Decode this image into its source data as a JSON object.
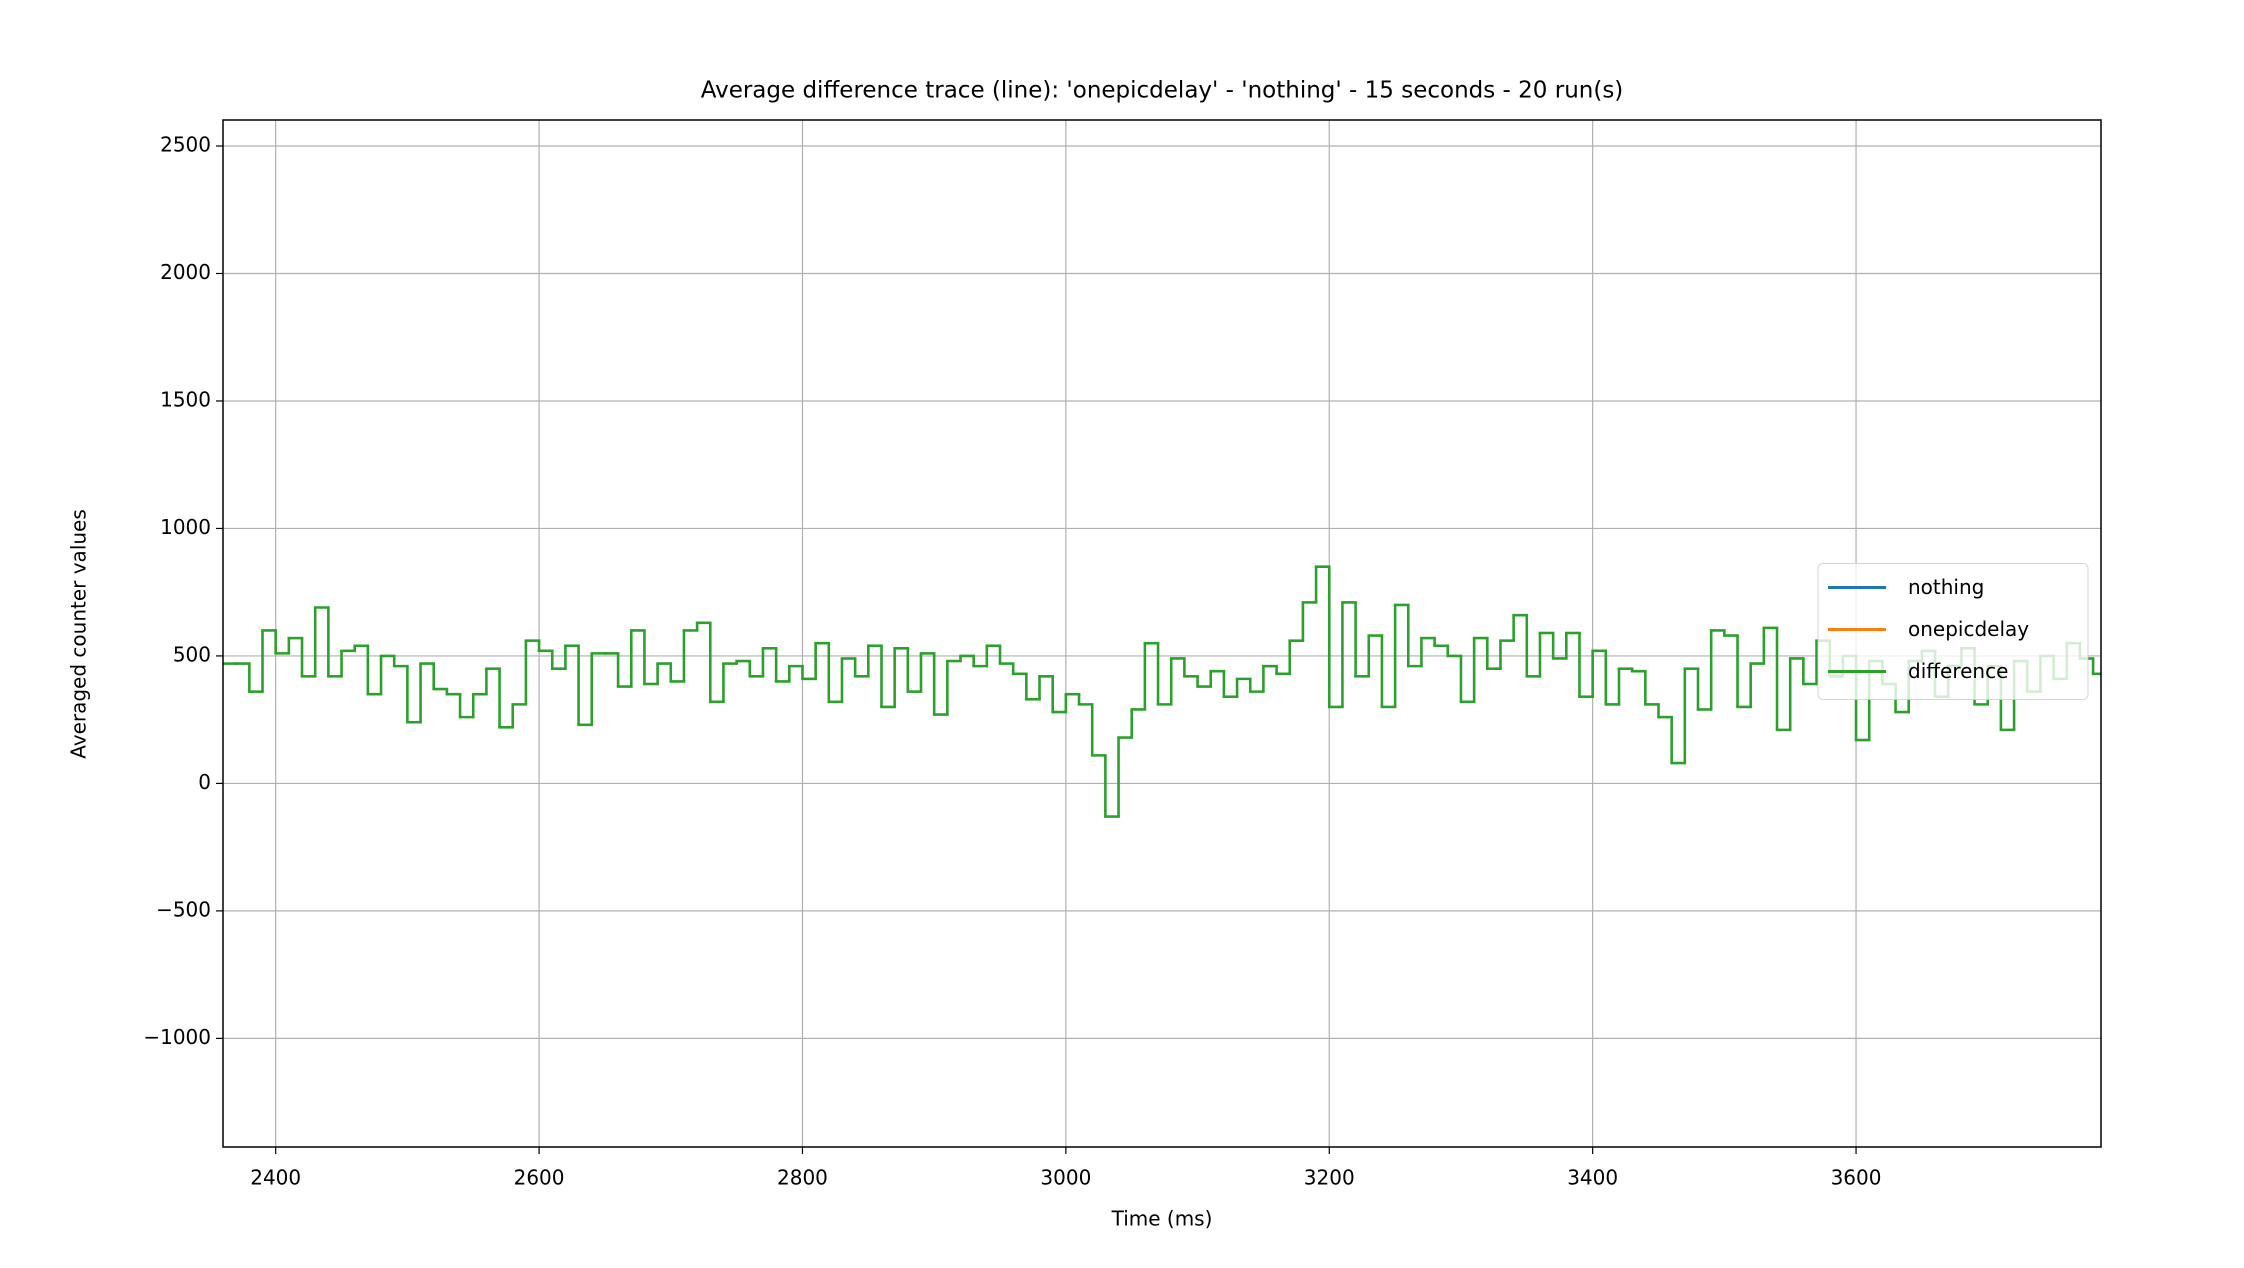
{
  "chart_data": {
    "type": "line",
    "drawstyle": "steps-post",
    "title": "Average difference trace (line): 'onepicdelay' - 'nothing' - 15 seconds - 20 run(s)",
    "xlabel": "Time (ms)",
    "ylabel": "Averaged counter values",
    "xlim": [
      2360,
      3786
    ],
    "ylim": [
      -1426,
      2602
    ],
    "xticks": [
      2400,
      2600,
      2800,
      3000,
      3200,
      3400,
      3600
    ],
    "yticks": [
      {
        "value": -1000,
        "label": "−1000"
      },
      {
        "value": -500,
        "label": "−500"
      },
      0,
      500,
      1000,
      1500,
      2000,
      2500
    ],
    "grid": true,
    "legend": "center right",
    "x": [
      2360,
      2370,
      2380,
      2390,
      2400,
      2410,
      2420,
      2430,
      2440,
      2450,
      2460,
      2470,
      2480,
      2490,
      2500,
      2510,
      2520,
      2530,
      2540,
      2550,
      2560,
      2570,
      2580,
      2590,
      2600,
      2610,
      2620,
      2630,
      2640,
      2650,
      2660,
      2670,
      2680,
      2690,
      2700,
      2710,
      2720,
      2730,
      2740,
      2750,
      2760,
      2770,
      2780,
      2790,
      2800,
      2810,
      2820,
      2830,
      2840,
      2850,
      2860,
      2870,
      2880,
      2890,
      2900,
      2910,
      2920,
      2930,
      2940,
      2950,
      2960,
      2970,
      2980,
      2990,
      3000,
      3010,
      3020,
      3030,
      3040,
      3050,
      3060,
      3070,
      3080,
      3090,
      3100,
      3110,
      3120,
      3130,
      3140,
      3150,
      3160,
      3170,
      3180,
      3190,
      3200,
      3210,
      3220,
      3230,
      3240,
      3250,
      3260,
      3270,
      3280,
      3290,
      3300,
      3310,
      3320,
      3330,
      3340,
      3350,
      3360,
      3370,
      3380,
      3390,
      3400,
      3410,
      3420,
      3430,
      3440,
      3450,
      3460,
      3470,
      3480,
      3490,
      3500,
      3510,
      3520,
      3530,
      3540,
      3550,
      3560,
      3570,
      3580,
      3590,
      3600,
      3610,
      3620,
      3630,
      3640,
      3650,
      3660,
      3670,
      3680,
      3690,
      3700,
      3710,
      3720,
      3730,
      3740,
      3750,
      3760,
      3770,
      3780
    ],
    "series": [
      {
        "name": "nothing",
        "color": "#1f77b4"
      },
      {
        "name": "onepicdelay",
        "color": "#ff7f0e"
      },
      {
        "name": "difference",
        "color": "#2ca02c",
        "values": [
          470,
          470,
          360,
          600,
          510,
          570,
          420,
          690,
          420,
          520,
          540,
          350,
          500,
          460,
          240,
          470,
          370,
          350,
          260,
          350,
          450,
          220,
          310,
          560,
          520,
          450,
          540,
          230,
          510,
          510,
          380,
          600,
          390,
          470,
          400,
          600,
          630,
          320,
          470,
          480,
          420,
          530,
          400,
          460,
          410,
          550,
          320,
          490,
          420,
          540,
          300,
          530,
          360,
          510,
          270,
          480,
          500,
          460,
          540,
          470,
          430,
          330,
          420,
          280,
          350,
          310,
          110,
          -130,
          180,
          290,
          550,
          310,
          490,
          420,
          380,
          440,
          340,
          410,
          360,
          460,
          430,
          560,
          710,
          850,
          300,
          710,
          420,
          580,
          300,
          700,
          460,
          570,
          540,
          500,
          320,
          570,
          450,
          560,
          660,
          420,
          590,
          490,
          590,
          340,
          520,
          310,
          450,
          440,
          310,
          260,
          80,
          450,
          290,
          600,
          580,
          300,
          470,
          610,
          210,
          490,
          390,
          560,
          420,
          500,
          170,
          480,
          390,
          280,
          480,
          520,
          340,
          460,
          530,
          310,
          460,
          210,
          480,
          360,
          500,
          410,
          550,
          490,
          430
        ]
      }
    ]
  }
}
